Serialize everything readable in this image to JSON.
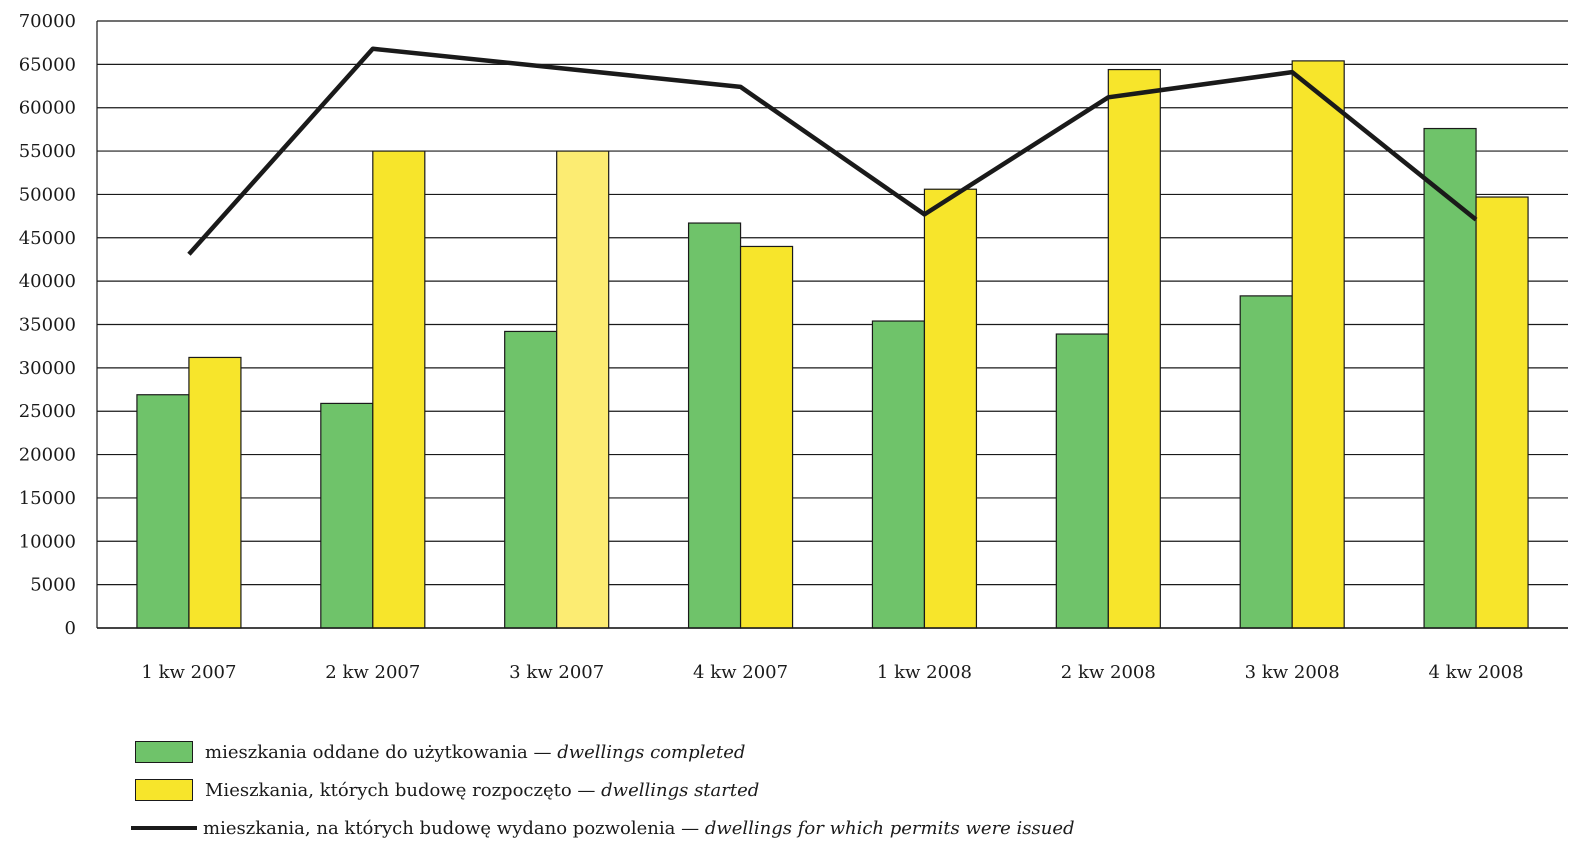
{
  "chart_data": {
    "type": "bar",
    "title": "",
    "xlabel": "",
    "ylabel": "",
    "ylim": [
      0,
      70000
    ],
    "yticks": [
      0,
      5000,
      10000,
      15000,
      20000,
      25000,
      30000,
      35000,
      40000,
      45000,
      50000,
      55000,
      60000,
      65000,
      70000
    ],
    "grid": true,
    "categories": [
      "1 kw 2007",
      "2 kw 2007",
      "3 kw 2007",
      "4 kw 2007",
      "1 kw 2008",
      "2 kw 2008",
      "3 kw 2008",
      "4 kw 2008"
    ],
    "series": [
      {
        "name": "mieszkania oddane do użytkowania — dwellings completed",
        "kind": "bar",
        "color": "#6fc36a",
        "values": [
          26900,
          25900,
          34200,
          46700,
          35400,
          33900,
          38300,
          57600
        ]
      },
      {
        "name": "Mieszkania, których budowę rozpoczęto — dwellings started",
        "kind": "bar",
        "color": "#f7e52b",
        "values": [
          31200,
          55000,
          55000,
          44000,
          50600,
          64400,
          65400,
          49700
        ]
      },
      {
        "name": "mieszkania, na których budowę wydano pozwolenia — dwellings for which permits were issued",
        "kind": "line",
        "color": "#1a1a1a",
        "values": [
          43100,
          66800,
          null,
          62400,
          47700,
          61200,
          64100,
          47100
        ]
      }
    ],
    "bar_highlight": {
      "series": 1,
      "index": 2,
      "color": "#fcec72"
    },
    "legend": {
      "placement": "bottom-left",
      "entries": [
        {
          "text": "mieszkania oddane do użytkowania — ",
          "italic": "dwellings completed",
          "marker": "bar",
          "color": "#6fc36a"
        },
        {
          "text": "Mieszkania, których budowę rozpoczęto — ",
          "italic": "dwellings started",
          "marker": "bar",
          "color": "#f7e52b"
        },
        {
          "text": "mieszkania, na których budowę wydano pozwolenia — ",
          "italic": "dwellings for which permits were issued",
          "marker": "line",
          "color": "#1a1a1a"
        }
      ]
    }
  }
}
